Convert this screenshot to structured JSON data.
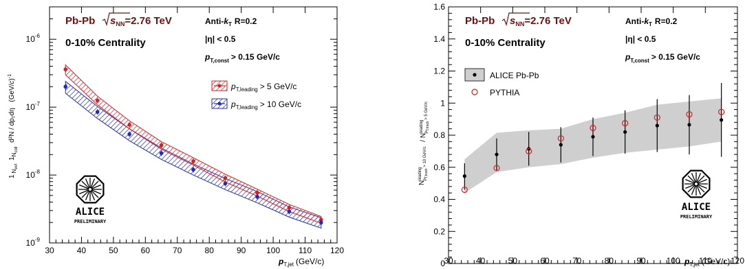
{
  "chart_data": [
    {
      "type": "scatter",
      "xlabel": "p_T,jet (GeV/c)",
      "xlabel_main": "p",
      "xlabel_sub": "T,jet",
      "xlabel_units": "(GeV/c)",
      "ylabel_text": "1/N_evt 1/N_coll d²N/dp_T dη (GeV/c)⁻¹",
      "xlim": [
        30,
        120
      ],
      "ylim": [
        1e-09,
        3e-06
      ],
      "yscale": "log",
      "x_ticks": [
        "30",
        "40",
        "50",
        "60",
        "70",
        "80",
        "90",
        "100",
        "110",
        "120"
      ],
      "y_ticks": [
        {
          "value": 1e-09,
          "base": "10",
          "exp": "-9"
        },
        {
          "value": 1e-08,
          "base": "10",
          "exp": "-8"
        },
        {
          "value": 1e-07,
          "base": "10",
          "exp": "-7"
        },
        {
          "value": 1e-06,
          "base": "10",
          "exp": "-6"
        }
      ],
      "annotations": {
        "system": "Pb-Pb",
        "energy_sqrt": "s",
        "energy_sub": "NN",
        "energy_value": "=2.76 TeV",
        "centrality": "0-10% Centrality",
        "algo_prefix": "Anti-",
        "algo_k": "k",
        "algo_sub": "T",
        "algo_suffix": "R=0.2",
        "eta": "|η| < 0.5",
        "pt_p": "p",
        "pt_sub": "T,const",
        "pt_rest": "> 0.15 GeV/c"
      },
      "legend": [
        {
          "p": "p",
          "sub": "T,leading",
          "rest": "> 5 GeV/c",
          "color": "#d61f1f"
        },
        {
          "p": "p",
          "sub": "T,leading",
          "rest": "> 10 GeV/c",
          "color": "#1f2bb8"
        }
      ],
      "series": [
        {
          "name": "p_T,leading > 5 GeV/c",
          "color": "#d61f1f",
          "x": [
            35,
            45,
            55,
            65,
            75,
            85,
            95,
            105,
            115
          ],
          "y": [
            3.6e-07,
            1.25e-07,
            5.5e-08,
            2.75e-08,
            1.6e-08,
            9e-09,
            5.5e-09,
            3.3e-09,
            2.2e-09
          ],
          "band_low": [
            3e-07,
            1.08e-07,
            4.8e-08,
            2.4e-08,
            1.4e-08,
            7.9e-09,
            4.9e-09,
            2.9e-09,
            1.95e-09
          ],
          "band_high": [
            4.2e-07,
            1.45e-07,
            6.3e-08,
            3.1e-08,
            1.8e-08,
            1.03e-08,
            6.2e-09,
            3.7e-09,
            2.45e-09
          ]
        },
        {
          "name": "p_T,leading > 10 GeV/c",
          "color": "#1f2bb8",
          "x": [
            35,
            45,
            55,
            65,
            75,
            85,
            95,
            105,
            115
          ],
          "y": [
            2e-07,
            8.5e-08,
            4e-08,
            2.1e-08,
            1.2e-08,
            7.5e-09,
            4.8e-09,
            2.9e-09,
            2e-09
          ],
          "band_low": [
            1.6e-07,
            6.8e-08,
            3.2e-08,
            1.7e-08,
            1e-08,
            6.1e-09,
            3.9e-09,
            2.4e-09,
            1.65e-09
          ],
          "band_high": [
            2.4e-07,
            1.02e-07,
            4.8e-08,
            2.5e-08,
            1.45e-08,
            8.9e-09,
            5.7e-09,
            3.4e-09,
            2.35e-09
          ]
        }
      ]
    },
    {
      "type": "scatter",
      "xlabel": "p_T,jet (GeV/c)",
      "xlabel_main": "p",
      "xlabel_sub": "T,jet",
      "xlabel_units": "(GeV/c)",
      "ylabel_text": "N^leading_p_track > 10 GeV/c / N^leading_p_track > 5 GeV/c",
      "xlim": [
        30,
        120
      ],
      "ylim": [
        0,
        1.6
      ],
      "x_ticks": [
        "30",
        "40",
        "50",
        "60",
        "70",
        "80",
        "90",
        "100",
        "110",
        "120"
      ],
      "y_ticks": [
        "0",
        "0.2",
        "0.4",
        "0.6",
        "0.8",
        "1",
        "1.2",
        "1.4",
        "1.6"
      ],
      "annotations": {
        "system": "Pb-Pb",
        "energy_sqrt": "s",
        "energy_sub": "NN",
        "energy_value": "=2.76 TeV",
        "centrality": "0-10% Centrality",
        "algo_prefix": "Anti-",
        "algo_k": "k",
        "algo_sub": "T",
        "algo_suffix": "R=0.2",
        "eta": "|η| < 0.5",
        "pt_p": "p",
        "pt_sub": "T,const",
        "pt_rest": "> 0.15 GeV/c"
      },
      "legend": [
        {
          "label": "ALICE Pb-Pb"
        },
        {
          "label": "PYTHIA"
        }
      ],
      "series": [
        {
          "name": "ALICE Pb-Pb",
          "color": "#000000",
          "x": [
            35,
            45,
            55,
            65,
            75,
            85,
            95,
            105,
            115
          ],
          "y": [
            0.545,
            0.68,
            0.715,
            0.74,
            0.79,
            0.82,
            0.86,
            0.865,
            0.895
          ],
          "err_low": [
            0.46,
            0.58,
            0.61,
            0.63,
            0.67,
            0.685,
            0.695,
            0.68,
            0.665
          ],
          "err_high": [
            0.625,
            0.78,
            0.82,
            0.85,
            0.91,
            0.955,
            1.025,
            1.05,
            1.125
          ],
          "band_low": [
            0.44,
            0.57,
            0.6,
            0.62,
            0.66,
            0.69,
            0.71,
            0.73,
            0.76
          ],
          "band_high": [
            0.65,
            0.815,
            0.83,
            0.84,
            0.9,
            0.94,
            0.99,
            1.01,
            1.03
          ]
        },
        {
          "name": "PYTHIA",
          "color": "#d61f1f",
          "x": [
            35,
            45,
            55,
            65,
            75,
            85,
            95,
            105,
            115
          ],
          "y": [
            0.46,
            0.595,
            0.7,
            0.78,
            0.845,
            0.875,
            0.91,
            0.93,
            0.945
          ]
        }
      ]
    }
  ],
  "logo": {
    "name": "ALICE",
    "subtitle": "PRELIMINARY"
  }
}
